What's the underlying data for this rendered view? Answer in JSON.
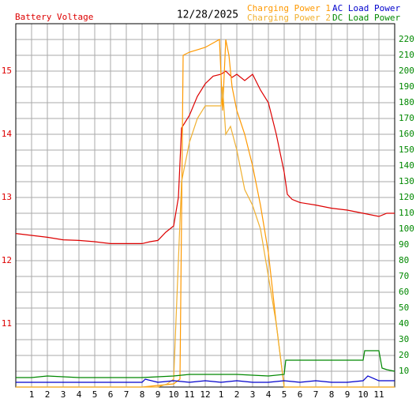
{
  "chart_data": {
    "type": "line",
    "title": "12/28/2025",
    "xlim": [
      0,
      24
    ],
    "xticks": [
      1,
      2,
      3,
      4,
      5,
      6,
      7,
      8,
      9,
      10,
      11,
      12,
      {
        "value": 13,
        "label": "1"
      },
      {
        "value": 14,
        "label": "2"
      },
      {
        "value": 15,
        "label": "3"
      },
      {
        "value": 16,
        "label": "4"
      },
      {
        "value": 17,
        "label": "5"
      },
      {
        "value": 18,
        "label": "6"
      },
      {
        "value": 19,
        "label": "7"
      },
      {
        "value": 20,
        "label": "8"
      },
      {
        "value": 21,
        "label": "9"
      },
      {
        "value": 22,
        "label": "10"
      },
      {
        "value": 23,
        "label": "11"
      }
    ],
    "ylim": [
      10,
      15.75
    ],
    "yticks": [
      11,
      12,
      13,
      14,
      15
    ],
    "y2lim": [
      0,
      230
    ],
    "y2ticks": [
      10,
      20,
      30,
      40,
      50,
      60,
      70,
      80,
      90,
      100,
      110,
      120,
      130,
      140,
      150,
      160,
      170,
      180,
      190,
      200,
      210,
      220
    ],
    "grid": true,
    "series": [
      {
        "name": "Battery Voltage",
        "color": "#dd0000",
        "axis": "y",
        "x": [
          0,
          1,
          2,
          3,
          4,
          5,
          6,
          7,
          8,
          8.5,
          9,
          9.5,
          10,
          10.3,
          10.5,
          11,
          11.5,
          12,
          12.5,
          13,
          13.3,
          13.7,
          14,
          14.5,
          15,
          15.5,
          16,
          16.5,
          17,
          17.2,
          17.5,
          18,
          19,
          20,
          21,
          22,
          23,
          23.5,
          24
        ],
        "values": [
          12.43,
          12.4,
          12.37,
          12.33,
          12.32,
          12.3,
          12.27,
          12.27,
          12.27,
          12.3,
          12.32,
          12.45,
          12.55,
          13.0,
          14.1,
          14.3,
          14.6,
          14.8,
          14.92,
          14.95,
          15.0,
          14.9,
          14.95,
          14.85,
          14.95,
          14.7,
          14.5,
          14.0,
          13.4,
          13.05,
          12.97,
          12.92,
          12.88,
          12.83,
          12.8,
          12.75,
          12.7,
          12.75,
          12.75
        ]
      },
      {
        "name": "Charging Power 1",
        "color": "#ff9900",
        "axis": "y2",
        "x": [
          0,
          8,
          9,
          10,
          10.4,
          10.6,
          11,
          12,
          12.9,
          13.1,
          13.3,
          13.5,
          13.7,
          14,
          14.5,
          15,
          15.5,
          16,
          16.5,
          17,
          24
        ],
        "values": [
          0,
          0,
          1,
          2,
          5,
          210,
          212,
          215,
          220,
          175,
          220,
          210,
          190,
          175,
          160,
          140,
          115,
          85,
          40,
          0,
          0
        ]
      },
      {
        "name": "Charging Power 2",
        "color": "#f0b030",
        "axis": "y2",
        "x": [
          0,
          8,
          9,
          9.6,
          10,
          10.5,
          11,
          11.5,
          12,
          12.5,
          13,
          13.1,
          13.3,
          13.6,
          14,
          14.5,
          15,
          15.5,
          16,
          16.5,
          17,
          24
        ],
        "values": [
          0,
          0,
          0,
          2,
          5,
          130,
          155,
          170,
          178,
          178,
          178,
          190,
          160,
          165,
          150,
          125,
          115,
          100,
          70,
          40,
          0,
          0
        ]
      },
      {
        "name": "AC Load Power",
        "color": "#0000cc",
        "axis": "y2",
        "x": [
          0,
          4,
          8,
          8.2,
          9,
          10,
          11,
          12,
          13,
          14,
          15,
          16,
          17,
          18,
          19,
          20,
          21,
          22,
          22.3,
          23,
          24
        ],
        "values": [
          3,
          3,
          3,
          5,
          3,
          4,
          3,
          4,
          3,
          4,
          3,
          3,
          4,
          3,
          4,
          3,
          3,
          4,
          7,
          4,
          4
        ]
      },
      {
        "name": "DC Load Power",
        "color": "#008800",
        "axis": "y2",
        "x": [
          0,
          1,
          2,
          4,
          8,
          10,
          11,
          12,
          14,
          16,
          17,
          17.1,
          18,
          20,
          21,
          22,
          22.1,
          23,
          23.2,
          23.5,
          24
        ],
        "values": [
          6,
          6,
          7,
          6,
          6,
          7,
          8,
          8,
          8,
          7,
          8,
          17,
          17,
          17,
          17,
          17,
          23,
          23,
          12,
          11,
          10
        ]
      }
    ]
  }
}
